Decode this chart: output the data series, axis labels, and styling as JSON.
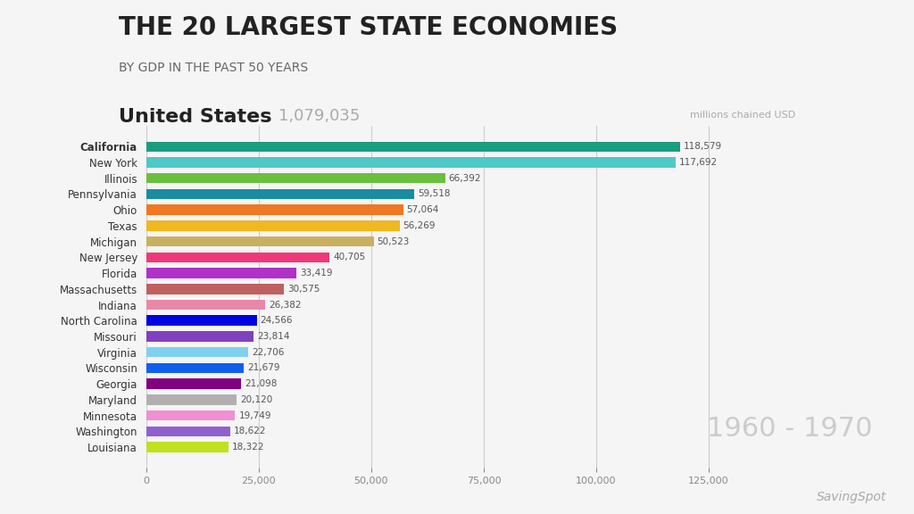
{
  "title": "THE 20 LARGEST STATE ECONOMIES",
  "subtitle": "BY GDP IN THE PAST 50 YEARS",
  "us_label": "United States",
  "us_value": "1,079,035",
  "units_label": "millions chained USD",
  "year_label": "1960 - 1970",
  "watermark": "SavingSpot",
  "states": [
    "California",
    "New York",
    "Illinois",
    "Pennsylvania",
    "Ohio",
    "Texas",
    "Michigan",
    "New Jersey",
    "Florida",
    "Massachusetts",
    "Indiana",
    "North Carolina",
    "Missouri",
    "Virginia",
    "Wisconsin",
    "Georgia",
    "Maryland",
    "Minnesota",
    "Washington",
    "Louisiana"
  ],
  "values": [
    118579,
    117692,
    66392,
    59518,
    57064,
    56269,
    50523,
    40705,
    33419,
    30575,
    26382,
    24566,
    23814,
    22706,
    21679,
    21098,
    20120,
    19749,
    18622,
    18322
  ],
  "colors": [
    "#1a9e7e",
    "#4fc8c8",
    "#6abf3e",
    "#1a8ca0",
    "#f07820",
    "#f0b820",
    "#c8b060",
    "#f03878",
    "#b030c8",
    "#c06060",
    "#e888a8",
    "#0000e0",
    "#8040c0",
    "#80d0f0",
    "#1060f0",
    "#800080",
    "#b0b0b0",
    "#f090d0",
    "#9060d0",
    "#c0e020"
  ],
  "background_color": "#f5f5f5",
  "bar_height": 0.65,
  "xlim": [
    0,
    130000
  ],
  "xticks": [
    0,
    25000,
    50000,
    75000,
    100000,
    125000
  ]
}
